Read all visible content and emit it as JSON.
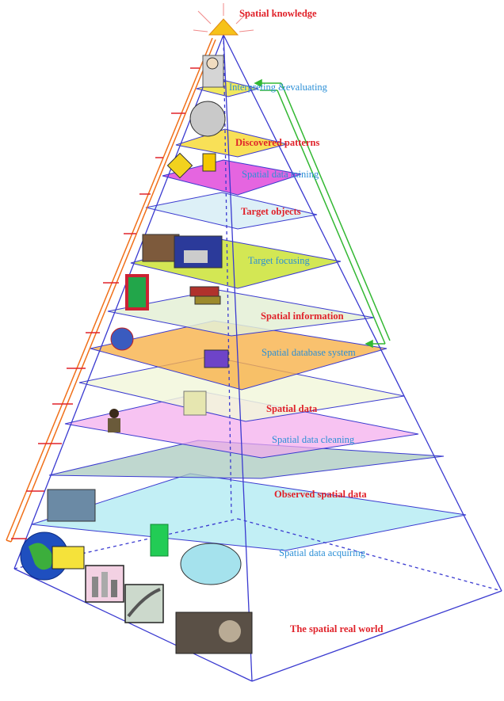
{
  "layers": [
    {
      "label": "Spatial knowledge",
      "tone": "red"
    },
    {
      "label": "Interpreting &evaluating",
      "tone": "blue"
    },
    {
      "label": "Discovered patterns",
      "tone": "red"
    },
    {
      "label": "Spatial data mining",
      "tone": "blue"
    },
    {
      "label": "Target objects",
      "tone": "red"
    },
    {
      "label": "Target focusing",
      "tone": "blue"
    },
    {
      "label": "Spatial information",
      "tone": "red"
    },
    {
      "label": "Spatial database system",
      "tone": "blue"
    },
    {
      "label": "Spatial data",
      "tone": "red"
    },
    {
      "label": "Spatial data cleaning",
      "tone": "blue"
    },
    {
      "label": "Observed spatial data",
      "tone": "red"
    },
    {
      "label": "Spatial data acquiring",
      "tone": "blue"
    },
    {
      "label": "The spatial real world",
      "tone": "red"
    }
  ],
  "colors": {
    "red_text": "#e0222a",
    "blue_text": "#2b8fd6",
    "frame": "#3a3ad0",
    "apex": "#f6c21a",
    "left_arrow": "#f0701a",
    "right_arrow": "#33b833"
  }
}
